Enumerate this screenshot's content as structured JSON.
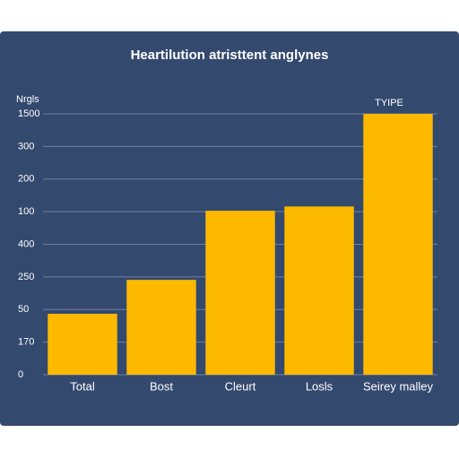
{
  "chart_data": {
    "type": "bar",
    "title": "Heartilution atristtent anglynes",
    "ylabel": "Nrgls",
    "annotation": "TYIPE",
    "categories": [
      "Total",
      "Bost",
      "Cleurt",
      "Losls",
      "Seirey malley"
    ],
    "values": [
      1.87,
      2.91,
      5.03,
      5.16,
      8.0
    ],
    "color": "#fcb900",
    "ylim": [
      0,
      8
    ],
    "yticks": [
      {
        "value": 0,
        "label": "0"
      },
      {
        "value": 1,
        "label": "170"
      },
      {
        "value": 2,
        "label": "50"
      },
      {
        "value": 3,
        "label": "250"
      },
      {
        "value": 4,
        "label": "400"
      },
      {
        "value": 5,
        "label": "100"
      },
      {
        "value": 6,
        "label": "200"
      },
      {
        "value": 7,
        "label": "300"
      },
      {
        "value": 8,
        "label": "1500"
      }
    ],
    "grid": true
  }
}
